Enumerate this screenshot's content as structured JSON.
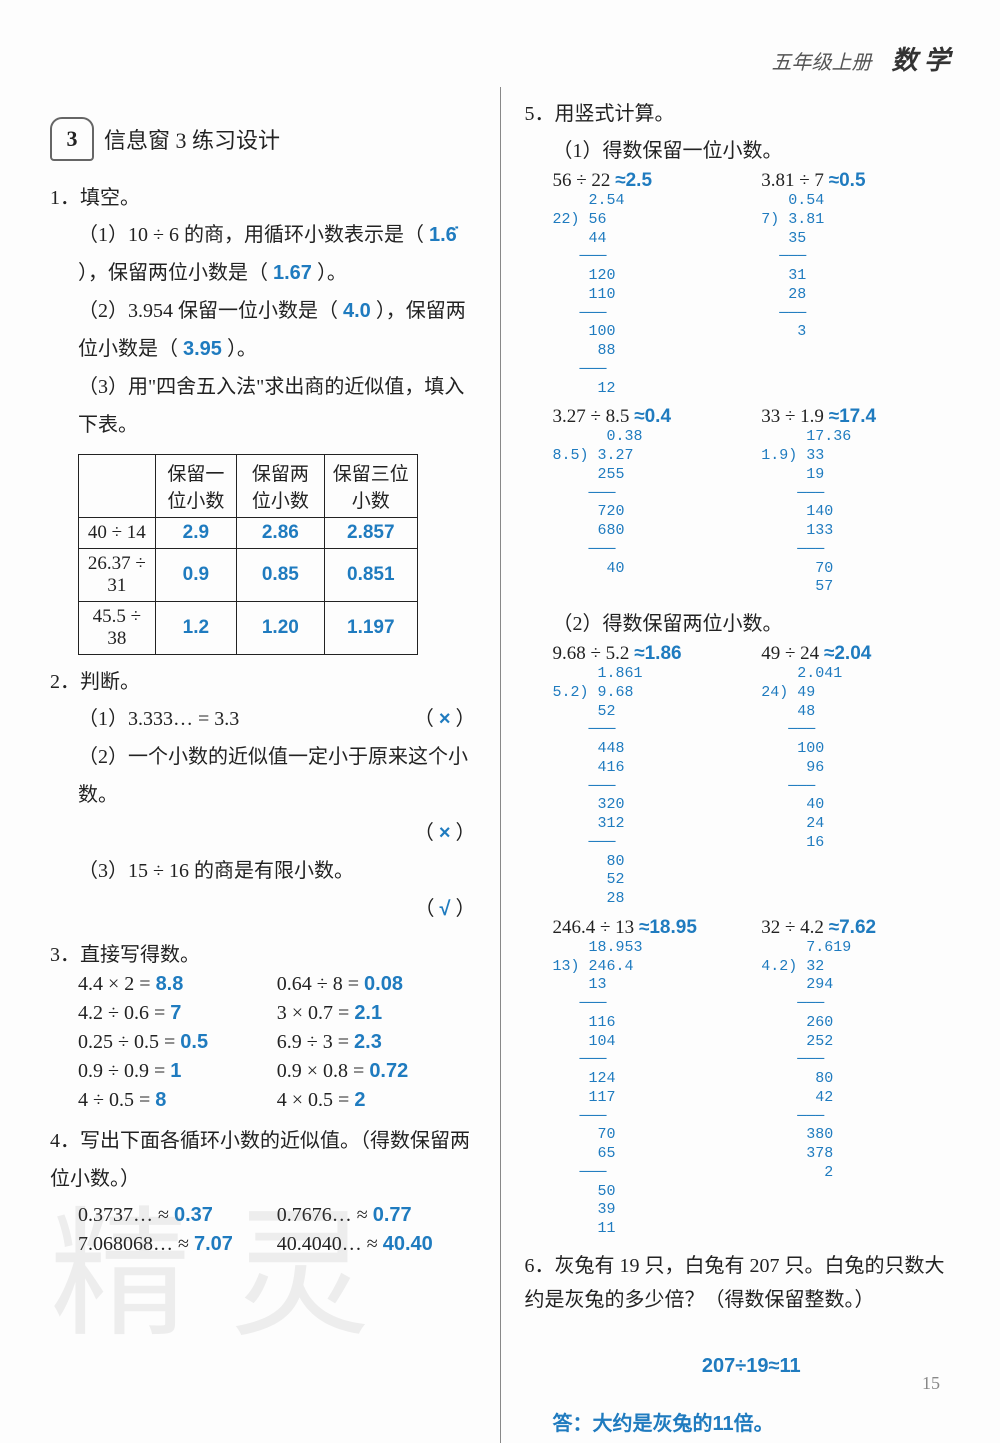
{
  "header": {
    "grade": "五年级上册",
    "subject": "数 学"
  },
  "section": {
    "num": "3",
    "title": "信息窗 3 练习设计"
  },
  "q1": {
    "title": "1．填空。",
    "p1_pre": "（1）10 ÷ 6 的商，用循环小数表示是（",
    "p1_a1": "1.6̇",
    "p1_mid": "），保留两位小数是（",
    "p1_a2": "1.67",
    "p1_end": "）。",
    "p2_pre": "（2）3.954 保留一位小数是（",
    "p2_a1": "4.0",
    "p2_mid": "），保留两位小数是（",
    "p2_a2": "3.95",
    "p2_end": "）。",
    "p3": "（3）用\"四舍五入法\"求出商的近似值，填入下表。",
    "table": {
      "headers": [
        "",
        "保留一位小数",
        "保留两位小数",
        "保留三位小数"
      ],
      "rows": [
        {
          "label": "40 ÷ 14",
          "v": [
            "2.9",
            "2.86",
            "2.857"
          ]
        },
        {
          "label": "26.37 ÷ 31",
          "v": [
            "0.9",
            "0.85",
            "0.851"
          ]
        },
        {
          "label": "45.5 ÷ 38",
          "v": [
            "1.2",
            "1.20",
            "1.197"
          ]
        }
      ]
    }
  },
  "q2": {
    "title": "2．判断。",
    "items": [
      {
        "text": "（1）3.333… = 3.3",
        "mark": "×"
      },
      {
        "text": "（2）一个小数的近似值一定小于原来这个小数。",
        "mark": "×"
      },
      {
        "text": "（3）15 ÷ 16 的商是有限小数。",
        "mark": "√"
      }
    ]
  },
  "q3": {
    "title": "3．直接写得数。",
    "items": [
      {
        "e": "4.4 × 2 =",
        "a": "8.8"
      },
      {
        "e": "0.64 ÷ 8 =",
        "a": "0.08"
      },
      {
        "e": "4.2 ÷ 0.6 =",
        "a": "7"
      },
      {
        "e": "3 × 0.7 =",
        "a": "2.1"
      },
      {
        "e": "0.25 ÷ 0.5 =",
        "a": "0.5"
      },
      {
        "e": "6.9 ÷ 3 =",
        "a": "2.3"
      },
      {
        "e": "0.9 ÷ 0.9 =",
        "a": "1"
      },
      {
        "e": "0.9 × 0.8 =",
        "a": "0.72"
      },
      {
        "e": "4 ÷ 0.5 =",
        "a": "8"
      },
      {
        "e": "4 × 0.5 =",
        "a": "2"
      }
    ]
  },
  "q4": {
    "title": "4．写出下面各循环小数的近似值。（得数保留两位小数。）",
    "items": [
      {
        "e": "0.3737… ≈",
        "a": "0.37"
      },
      {
        "e": "0.7676… ≈",
        "a": "0.77"
      },
      {
        "e": "7.068068… ≈",
        "a": "7.07"
      },
      {
        "e": "40.4040… ≈",
        "a": "40.40"
      }
    ]
  },
  "q5": {
    "title": "5．用竖式计算。",
    "sub1": "（1）得数保留一位小数。",
    "sub2": "（2）得数保留两位小数。",
    "g1": [
      {
        "expr": "56 ÷ 22",
        "ans": "≈2.5",
        "work": "    2.54\n22) 56\n    44\n   ───\n    120\n    110\n   ───\n    100\n     88\n   ───\n     12"
      },
      {
        "expr": "3.81 ÷ 7",
        "ans": "≈0.5",
        "work": "   0.54\n7) 3.81\n   35\n  ───\n   31\n   28\n  ───\n    3"
      },
      {
        "expr": "3.27 ÷ 8.5",
        "ans": "≈0.4",
        "work": "      0.38\n8.5) 3.27\n     255\n    ───\n     720\n     680\n    ───\n      40"
      },
      {
        "expr": "33 ÷ 1.9",
        "ans": "≈17.4",
        "work": "     17.36\n1.9) 33\n     19\n    ───\n     140\n     133\n    ───\n      70\n      57"
      }
    ],
    "g2": [
      {
        "expr": "9.68 ÷ 5.2",
        "ans": "≈1.86",
        "work": "     1.861\n5.2) 9.68\n     52\n    ───\n     448\n     416\n    ───\n     320\n     312\n    ───\n      80\n      52\n      28"
      },
      {
        "expr": "49 ÷ 24",
        "ans": "≈2.04",
        "work": "    2.041\n24) 49\n    48\n   ───\n    100\n     96\n   ───\n     40\n     24\n     16"
      },
      {
        "expr": "246.4 ÷ 13",
        "ans": "≈18.95",
        "work": "    18.953\n13) 246.4\n    13\n   ───\n    116\n    104\n   ───\n    124\n    117\n   ───\n     70\n     65\n   ───\n     50\n     39\n     11"
      },
      {
        "expr": "32 ÷ 4.2",
        "ans": "≈7.62",
        "work": "     7.619\n4.2) 32\n     294\n    ───\n     260\n     252\n    ───\n      80\n      42\n    ───\n     380\n     378\n       2"
      }
    ]
  },
  "q6": {
    "title": "6．灰兔有 19 只，白兔有 207 只。白兔的只数大约是灰兔的多少倍？（得数保留整数。）",
    "work": "207÷19≈11",
    "answer": "答：大约是灰兔的11倍。"
  },
  "watermark": "精灵",
  "page": "15",
  "colors": {
    "answer": "#1f7bbf",
    "text": "#222222",
    "bg": "#fdfdfd"
  }
}
